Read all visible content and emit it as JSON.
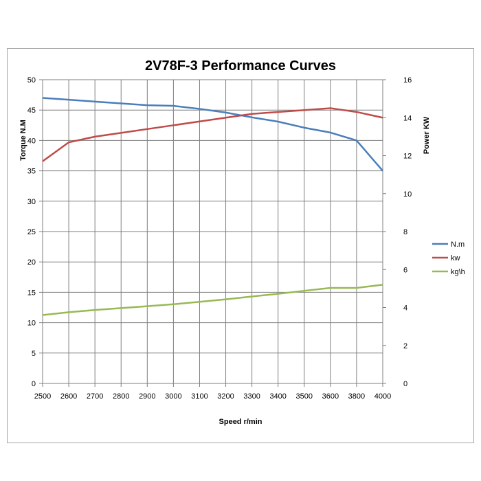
{
  "chart_data": {
    "type": "line",
    "title": "2V78F-3 Performance Curves",
    "xlabel": "Speed r/min",
    "ylabel": "Torque N.M",
    "y2label": "Power KW",
    "categories": [
      "2500",
      "2600",
      "2700",
      "2800",
      "2900",
      "3000",
      "3100",
      "3200",
      "3300",
      "3400",
      "3500",
      "3600",
      "3800",
      "4000"
    ],
    "ylim": [
      0,
      50
    ],
    "yticks": [
      0,
      5,
      10,
      15,
      20,
      25,
      30,
      35,
      40,
      45,
      50
    ],
    "y2lim": [
      0,
      16
    ],
    "y2ticks": [
      0,
      2,
      4,
      6,
      8,
      10,
      12,
      14,
      16
    ],
    "grid": true,
    "legend_position": "right",
    "series": [
      {
        "name": "N.m",
        "axis": "left",
        "color": "#4a7ebb",
        "values": [
          47.0,
          46.7,
          46.4,
          46.1,
          45.8,
          45.7,
          45.2,
          44.6,
          43.8,
          43.1,
          42.1,
          41.3,
          40.0,
          35.0
        ]
      },
      {
        "name": "kw",
        "axis": "right",
        "color": "#be4b48",
        "values": [
          11.7,
          12.7,
          13.0,
          13.2,
          13.4,
          13.6,
          13.8,
          14.0,
          14.2,
          14.3,
          14.4,
          14.5,
          14.3,
          14.0
        ]
      },
      {
        "name": "kg\\h",
        "axis": "right",
        "color": "#98b954",
        "values": [
          3.6,
          3.75,
          3.87,
          3.97,
          4.07,
          4.17,
          4.3,
          4.43,
          4.58,
          4.72,
          4.88,
          5.03,
          5.03,
          5.2
        ]
      }
    ]
  }
}
